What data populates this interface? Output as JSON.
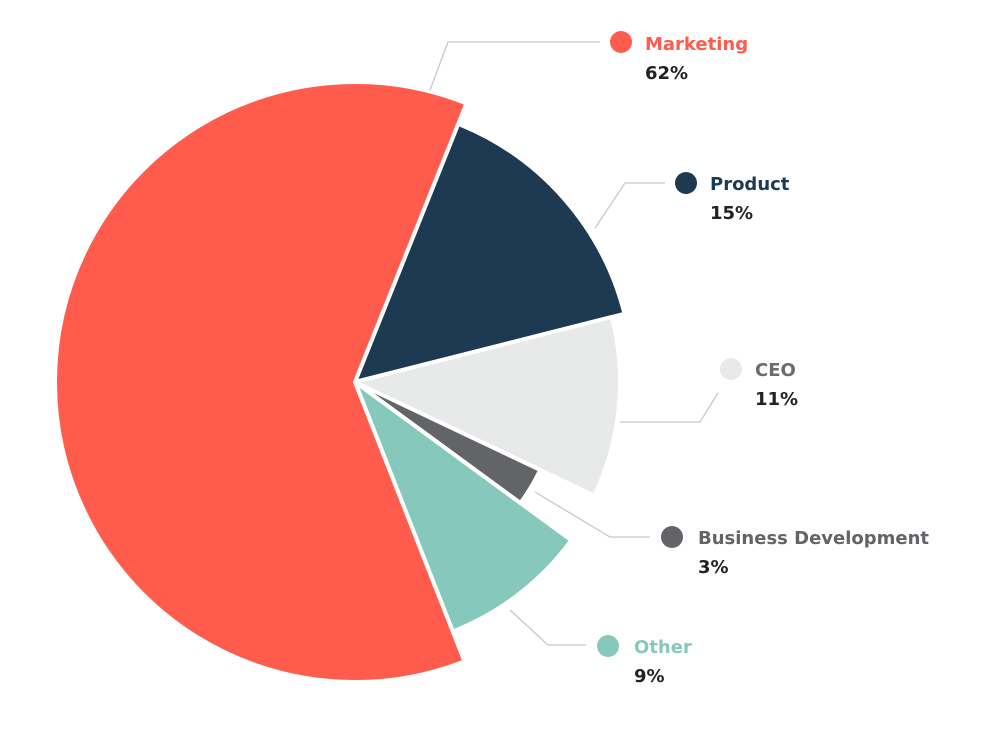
{
  "chart_data": {
    "type": "pie",
    "title": "",
    "slices": [
      {
        "label": "Product",
        "value": 15,
        "display": "15%",
        "color": "#1E3A52",
        "label_color": "#1E3A52"
      },
      {
        "label": "CEO",
        "value": 11,
        "display": "11%",
        "color": "#E8E9E9",
        "label_color": "#6B6B6B"
      },
      {
        "label": "Business Development",
        "value": 3,
        "display": "3%",
        "color": "#636468",
        "label_color": "#636468"
      },
      {
        "label": "Other",
        "value": 9,
        "display": "9%",
        "color": "#86C9BC",
        "label_color": "#86C9BC"
      },
      {
        "label": "Marketing",
        "value": 62,
        "display": "62%",
        "color": "#FF5C4D",
        "label_color": "#FF5C4D"
      }
    ]
  }
}
